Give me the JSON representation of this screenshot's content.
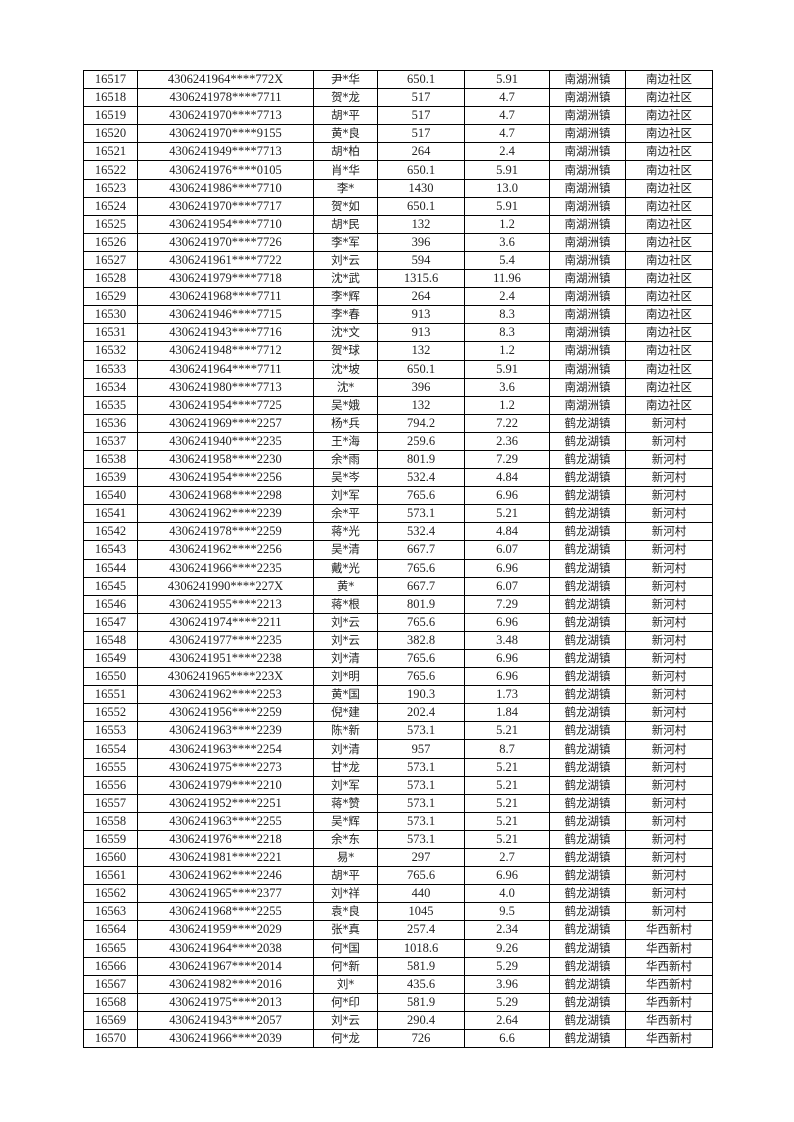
{
  "rows": [
    [
      "16517",
      "4306241964****772X",
      "尹*华",
      "650.1",
      "5.91",
      "南湖洲镇",
      "南边社区"
    ],
    [
      "16518",
      "4306241978****7711",
      "贺*龙",
      "517",
      "4.7",
      "南湖洲镇",
      "南边社区"
    ],
    [
      "16519",
      "4306241970****7713",
      "胡*平",
      "517",
      "4.7",
      "南湖洲镇",
      "南边社区"
    ],
    [
      "16520",
      "4306241970****9155",
      "黄*良",
      "517",
      "4.7",
      "南湖洲镇",
      "南边社区"
    ],
    [
      "16521",
      "4306241949****7713",
      "胡*柏",
      "264",
      "2.4",
      "南湖洲镇",
      "南边社区"
    ],
    [
      "16522",
      "4306241976****0105",
      "肖*华",
      "650.1",
      "5.91",
      "南湖洲镇",
      "南边社区"
    ],
    [
      "16523",
      "4306241986****7710",
      "李*",
      "1430",
      "13.0",
      "南湖洲镇",
      "南边社区"
    ],
    [
      "16524",
      "4306241970****7717",
      "贺*如",
      "650.1",
      "5.91",
      "南湖洲镇",
      "南边社区"
    ],
    [
      "16525",
      "4306241954****7710",
      "胡*民",
      "132",
      "1.2",
      "南湖洲镇",
      "南边社区"
    ],
    [
      "16526",
      "4306241970****7726",
      "李*军",
      "396",
      "3.6",
      "南湖洲镇",
      "南边社区"
    ],
    [
      "16527",
      "4306241961****7722",
      "刘*云",
      "594",
      "5.4",
      "南湖洲镇",
      "南边社区"
    ],
    [
      "16528",
      "4306241979****7718",
      "沈*武",
      "1315.6",
      "11.96",
      "南湖洲镇",
      "南边社区"
    ],
    [
      "16529",
      "4306241968****7711",
      "李*辉",
      "264",
      "2.4",
      "南湖洲镇",
      "南边社区"
    ],
    [
      "16530",
      "4306241946****7715",
      "李*春",
      "913",
      "8.3",
      "南湖洲镇",
      "南边社区"
    ],
    [
      "16531",
      "4306241943****7716",
      "沈*文",
      "913",
      "8.3",
      "南湖洲镇",
      "南边社区"
    ],
    [
      "16532",
      "4306241948****7712",
      "贺*球",
      "132",
      "1.2",
      "南湖洲镇",
      "南边社区"
    ],
    [
      "16533",
      "4306241964****7711",
      "沈*坡",
      "650.1",
      "5.91",
      "南湖洲镇",
      "南边社区"
    ],
    [
      "16534",
      "4306241980****7713",
      "沈*",
      "396",
      "3.6",
      "南湖洲镇",
      "南边社区"
    ],
    [
      "16535",
      "4306241954****7725",
      "吴*娥",
      "132",
      "1.2",
      "南湖洲镇",
      "南边社区"
    ],
    [
      "16536",
      "4306241969****2257",
      "杨*兵",
      "794.2",
      "7.22",
      "鹤龙湖镇",
      "新河村"
    ],
    [
      "16537",
      "4306241940****2235",
      "王*海",
      "259.6",
      "2.36",
      "鹤龙湖镇",
      "新河村"
    ],
    [
      "16538",
      "4306241958****2230",
      "余*雨",
      "801.9",
      "7.29",
      "鹤龙湖镇",
      "新河村"
    ],
    [
      "16539",
      "4306241954****2256",
      "吴*岑",
      "532.4",
      "4.84",
      "鹤龙湖镇",
      "新河村"
    ],
    [
      "16540",
      "4306241968****2298",
      "刘*军",
      "765.6",
      "6.96",
      "鹤龙湖镇",
      "新河村"
    ],
    [
      "16541",
      "4306241962****2239",
      "余*平",
      "573.1",
      "5.21",
      "鹤龙湖镇",
      "新河村"
    ],
    [
      "16542",
      "4306241978****2259",
      "蒋*光",
      "532.4",
      "4.84",
      "鹤龙湖镇",
      "新河村"
    ],
    [
      "16543",
      "4306241962****2256",
      "吴*清",
      "667.7",
      "6.07",
      "鹤龙湖镇",
      "新河村"
    ],
    [
      "16544",
      "4306241966****2235",
      "戴*光",
      "765.6",
      "6.96",
      "鹤龙湖镇",
      "新河村"
    ],
    [
      "16545",
      "4306241990****227X",
      "黄*",
      "667.7",
      "6.07",
      "鹤龙湖镇",
      "新河村"
    ],
    [
      "16546",
      "4306241955****2213",
      "蒋*根",
      "801.9",
      "7.29",
      "鹤龙湖镇",
      "新河村"
    ],
    [
      "16547",
      "4306241974****2211",
      "刘*云",
      "765.6",
      "6.96",
      "鹤龙湖镇",
      "新河村"
    ],
    [
      "16548",
      "4306241977****2235",
      "刘*云",
      "382.8",
      "3.48",
      "鹤龙湖镇",
      "新河村"
    ],
    [
      "16549",
      "4306241951****2238",
      "刘*清",
      "765.6",
      "6.96",
      "鹤龙湖镇",
      "新河村"
    ],
    [
      "16550",
      "4306241965****223X",
      "刘*明",
      "765.6",
      "6.96",
      "鹤龙湖镇",
      "新河村"
    ],
    [
      "16551",
      "4306241962****2253",
      "黄*国",
      "190.3",
      "1.73",
      "鹤龙湖镇",
      "新河村"
    ],
    [
      "16552",
      "4306241956****2259",
      "倪*建",
      "202.4",
      "1.84",
      "鹤龙湖镇",
      "新河村"
    ],
    [
      "16553",
      "4306241963****2239",
      "陈*新",
      "573.1",
      "5.21",
      "鹤龙湖镇",
      "新河村"
    ],
    [
      "16554",
      "4306241963****2254",
      "刘*清",
      "957",
      "8.7",
      "鹤龙湖镇",
      "新河村"
    ],
    [
      "16555",
      "4306241975****2273",
      "甘*龙",
      "573.1",
      "5.21",
      "鹤龙湖镇",
      "新河村"
    ],
    [
      "16556",
      "4306241979****2210",
      "刘*军",
      "573.1",
      "5.21",
      "鹤龙湖镇",
      "新河村"
    ],
    [
      "16557",
      "4306241952****2251",
      "蒋*赞",
      "573.1",
      "5.21",
      "鹤龙湖镇",
      "新河村"
    ],
    [
      "16558",
      "4306241963****2255",
      "吴*辉",
      "573.1",
      "5.21",
      "鹤龙湖镇",
      "新河村"
    ],
    [
      "16559",
      "4306241976****2218",
      "余*东",
      "573.1",
      "5.21",
      "鹤龙湖镇",
      "新河村"
    ],
    [
      "16560",
      "4306241981****2221",
      "易*",
      "297",
      "2.7",
      "鹤龙湖镇",
      "新河村"
    ],
    [
      "16561",
      "4306241962****2246",
      "胡*平",
      "765.6",
      "6.96",
      "鹤龙湖镇",
      "新河村"
    ],
    [
      "16562",
      "4306241965****2377",
      "刘*祥",
      "440",
      "4.0",
      "鹤龙湖镇",
      "新河村"
    ],
    [
      "16563",
      "4306241968****2255",
      "袁*良",
      "1045",
      "9.5",
      "鹤龙湖镇",
      "新河村"
    ],
    [
      "16564",
      "4306241959****2029",
      "张*真",
      "257.4",
      "2.34",
      "鹤龙湖镇",
      "华西新村"
    ],
    [
      "16565",
      "4306241964****2038",
      "何*国",
      "1018.6",
      "9.26",
      "鹤龙湖镇",
      "华西新村"
    ],
    [
      "16566",
      "4306241967****2014",
      "何*新",
      "581.9",
      "5.29",
      "鹤龙湖镇",
      "华西新村"
    ],
    [
      "16567",
      "4306241982****2016",
      "刘*",
      "435.6",
      "3.96",
      "鹤龙湖镇",
      "华西新村"
    ],
    [
      "16568",
      "4306241975****2013",
      "何*印",
      "581.9",
      "5.29",
      "鹤龙湖镇",
      "华西新村"
    ],
    [
      "16569",
      "4306241943****2057",
      "刘*云",
      "290.4",
      "2.64",
      "鹤龙湖镇",
      "华西新村"
    ],
    [
      "16570",
      "4306241966****2039",
      "何*龙",
      "726",
      "6.6",
      "鹤龙湖镇",
      "华西新村"
    ]
  ]
}
